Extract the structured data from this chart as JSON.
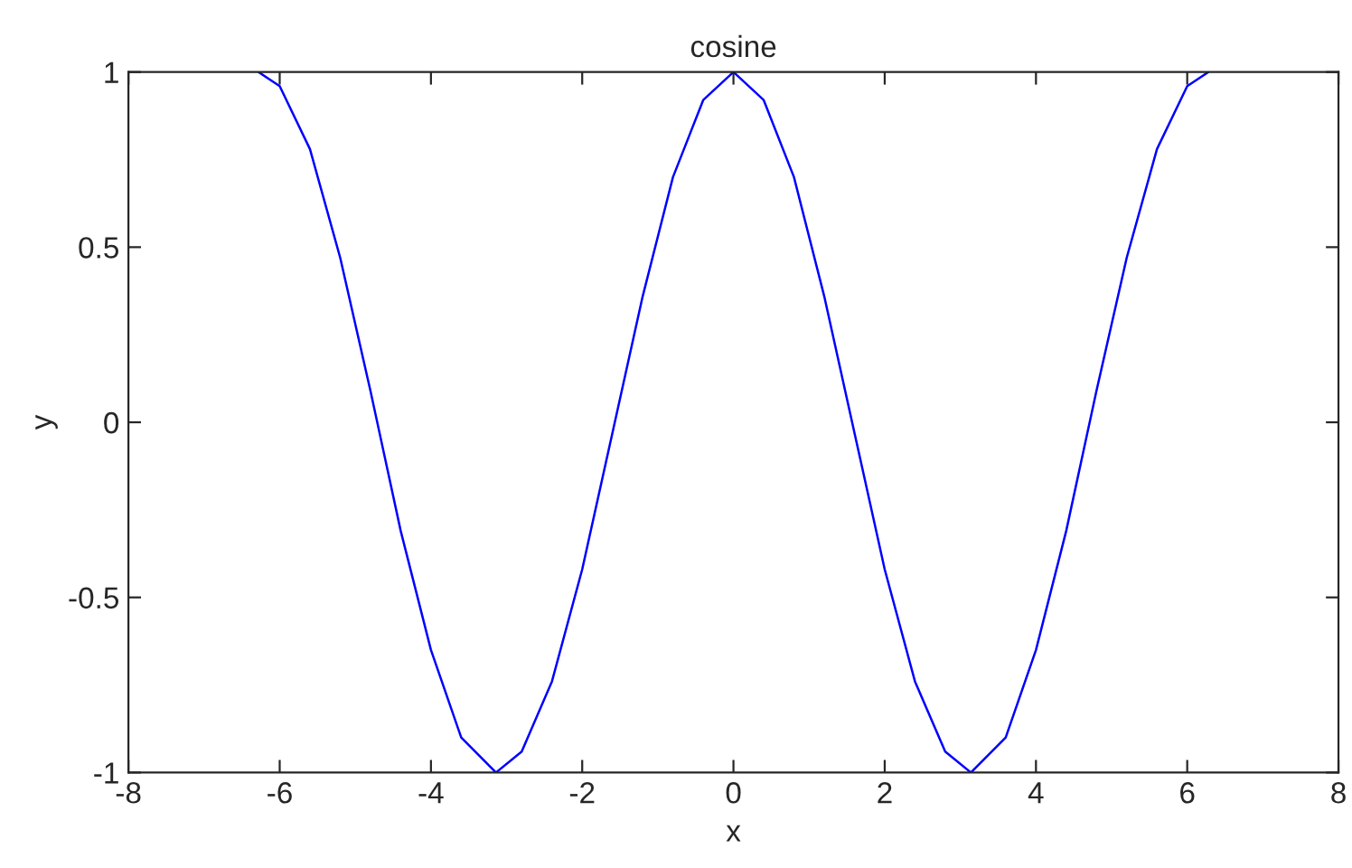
{
  "chart_data": {
    "type": "line",
    "title": "cosine",
    "xlabel": "x",
    "ylabel": "y",
    "x": [
      -6.28,
      -6.0,
      -5.6,
      -5.2,
      -4.8,
      -4.4,
      -4.0,
      -3.6,
      -3.14,
      -2.8,
      -2.4,
      -2.0,
      -1.6,
      -1.2,
      -0.8,
      -0.4,
      0,
      0.4,
      0.8,
      1.2,
      1.6,
      2.0,
      2.4,
      2.8,
      3.14,
      3.6,
      4.0,
      4.4,
      4.8,
      5.2,
      5.6,
      6.0,
      6.28
    ],
    "series": [
      {
        "color": "#0000ff",
        "values": [
          1.0,
          0.96,
          0.78,
          0.47,
          0.09,
          -0.31,
          -0.65,
          -0.9,
          -1.0,
          -0.94,
          -0.74,
          -0.42,
          -0.03,
          0.36,
          0.7,
          0.92,
          1.0,
          0.92,
          0.7,
          0.36,
          -0.03,
          -0.42,
          -0.74,
          -0.94,
          -1.0,
          -0.9,
          -0.65,
          -0.31,
          0.09,
          0.47,
          0.78,
          0.96,
          1.0
        ]
      }
    ],
    "xlim": [
      -8,
      8
    ],
    "ylim": [
      -1,
      1
    ],
    "xticks": [
      -8,
      -6,
      -4,
      -2,
      0,
      2,
      4,
      6,
      8
    ],
    "yticks": [
      -1,
      -0.5,
      0,
      0.5,
      1
    ],
    "grid": false,
    "legend": false,
    "line_style": "solid"
  }
}
